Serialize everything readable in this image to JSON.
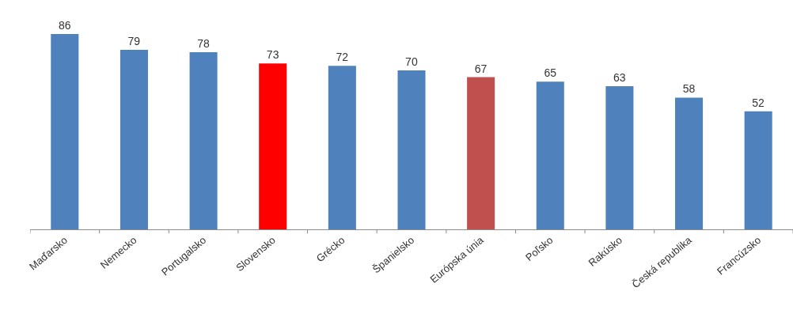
{
  "chart_data": {
    "type": "bar",
    "categories": [
      "Maďarsko",
      "Nemecko",
      "Portugalsko",
      "Slovensko",
      "Grécko",
      "Španielsko",
      "Európska únia",
      "Poľsko",
      "Rakúsko",
      "Česká republika",
      "Francúzsko"
    ],
    "values": [
      86,
      79,
      78,
      73,
      72,
      70,
      67,
      65,
      63,
      58,
      52
    ],
    "colors": [
      "#4f81bd",
      "#4f81bd",
      "#4f81bd",
      "#ff0000",
      "#4f81bd",
      "#4f81bd",
      "#c0504d",
      "#4f81bd",
      "#4f81bd",
      "#4f81bd",
      "#4f81bd"
    ],
    "data_labels": true,
    "tick_labels": "x"
  }
}
